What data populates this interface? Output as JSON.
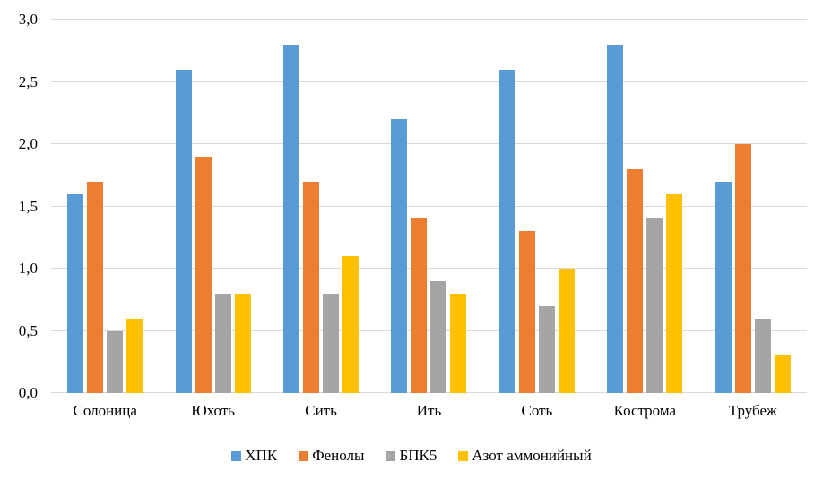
{
  "chart_data": {
    "type": "bar",
    "title": "",
    "xlabel": "",
    "ylabel": "",
    "categories": [
      "Солоница",
      "Юхоть",
      "Сить",
      "Ить",
      "Соть",
      "Кострома",
      "Трубеж"
    ],
    "series": [
      {
        "name": "ХПК",
        "color": "#5B9BD5",
        "values": [
          1.6,
          2.6,
          2.8,
          2.2,
          2.6,
          2.8,
          1.7
        ]
      },
      {
        "name": "Фенолы",
        "color": "#ED7D31",
        "values": [
          1.7,
          1.9,
          1.7,
          1.4,
          1.3,
          1.8,
          2.0
        ]
      },
      {
        "name": "БПК5",
        "color": "#A5A5A5",
        "values": [
          0.5,
          0.8,
          0.8,
          0.9,
          0.7,
          1.4,
          0.6
        ]
      },
      {
        "name": "Азот аммонийный",
        "color": "#FFC000",
        "values": [
          0.6,
          0.8,
          1.1,
          0.8,
          1.0,
          1.6,
          0.3
        ]
      }
    ],
    "ylim": [
      0,
      3.0
    ],
    "ytick_step": 0.5,
    "ytick_labels": [
      "0,0",
      "0,5",
      "1,0",
      "1,5",
      "2,0",
      "2,5",
      "3,0"
    ],
    "grid": true,
    "gridline_color": "#d9d9d9",
    "legend_position": "bottom",
    "background": "#ffffff"
  }
}
